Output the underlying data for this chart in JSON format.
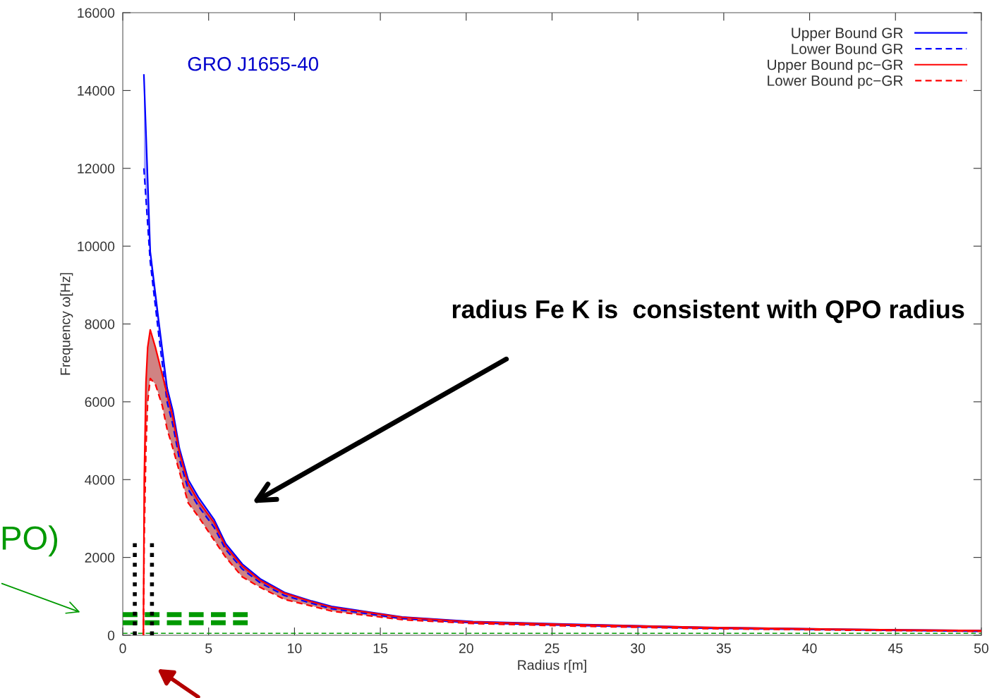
{
  "chart_data": {
    "type": "line",
    "xlabel": "Radius r[m]",
    "ylabel": "Frequency ω[Hz]",
    "xlim": [
      0,
      50
    ],
    "xticks": [
      0,
      5,
      10,
      15,
      20,
      25,
      30,
      35,
      40,
      45,
      50
    ],
    "ylim": [
      0,
      16000
    ],
    "yticks": [
      0,
      2000,
      4000,
      6000,
      8000,
      10000,
      12000,
      14000,
      16000
    ],
    "grid": false,
    "legend": "top right",
    "marker": "none",
    "series": [
      {
        "name": "Upper Bound GR",
        "color": "#0000ff",
        "line_style": "solid",
        "x": [
          1.23,
          1.6,
          2.1,
          2.58,
          2.92,
          3.3,
          3.81,
          4.4,
          5.31,
          6.0,
          6.96,
          8.0,
          9.42,
          11.0,
          12.16,
          16.27,
          20.4,
          25.7,
          33.9,
          42.2,
          50
        ],
        "values": [
          14400,
          9860,
          8050,
          6360,
          5760,
          4800,
          4000,
          3550,
          2980,
          2350,
          1830,
          1450,
          1100,
          880,
          740,
          470,
          350,
          290,
          200,
          150,
          120
        ],
        "lower": [
          12000,
          9600,
          7700,
          6000,
          5400,
          4520,
          3750,
          3320,
          2780,
          2200,
          1700,
          1350,
          1020,
          820,
          680,
          430,
          320,
          260,
          180,
          140,
          100
        ],
        "upper": [
          14400,
          9860,
          8050,
          6360,
          5760,
          4800,
          4000,
          3550,
          2980,
          2350,
          1830,
          1450,
          1100,
          880,
          740,
          470,
          350,
          290,
          200,
          150,
          120
        ]
      },
      {
        "name": "Lower Bound GR",
        "color": "#0000ff",
        "line_style": "dashed",
        "x": [
          1.23,
          1.6,
          2.1,
          2.58,
          2.92,
          3.3,
          3.81,
          4.4,
          5.31,
          6.0,
          6.96,
          8.0,
          9.42,
          11.0,
          12.16,
          16.27,
          20.4,
          25.7,
          33.9,
          42.2,
          50
        ],
        "values": [
          12000,
          9600,
          7700,
          6000,
          5400,
          4520,
          3750,
          3320,
          2780,
          2200,
          1700,
          1350,
          1020,
          820,
          680,
          430,
          320,
          260,
          180,
          140,
          100
        ]
      },
      {
        "name": "Upper Bound pc−GR",
        "color": "#ff0000",
        "line_style": "solid",
        "x": [
          1.2,
          1.25,
          1.35,
          1.45,
          1.6,
          1.9,
          2.3,
          2.58,
          2.92,
          3.3,
          3.81,
          4.4,
          5.31,
          6.0,
          6.96,
          8.0,
          9.42,
          11.0,
          12.16,
          16.27,
          20.4,
          25.7,
          33.9,
          42.2,
          50
        ],
        "values": [
          0,
          4000,
          6500,
          7400,
          7850,
          7400,
          6700,
          6200,
          5600,
          4700,
          3900,
          3450,
          2900,
          2280,
          1780,
          1410,
          1080,
          860,
          720,
          460,
          340,
          280,
          200,
          150,
          120
        ],
        "lower": [
          0,
          2500,
          4800,
          6000,
          6600,
          6450,
          5900,
          5300,
          4800,
          4200,
          3400,
          3050,
          2450,
          2000,
          1500,
          1230,
          920,
          750,
          620,
          400,
          300,
          240,
          170,
          130,
          100
        ],
        "upper": [
          0,
          4000,
          6500,
          7400,
          7850,
          7400,
          6700,
          6200,
          5600,
          4700,
          3900,
          3450,
          2900,
          2280,
          1780,
          1410,
          1080,
          860,
          720,
          460,
          340,
          280,
          200,
          150,
          120
        ]
      },
      {
        "name": "Lower Bound pc−GR",
        "color": "#ff0000",
        "line_style": "dashed",
        "x": [
          1.2,
          1.25,
          1.35,
          1.45,
          1.6,
          1.9,
          2.3,
          2.58,
          2.92,
          3.3,
          3.81,
          4.4,
          5.31,
          6.0,
          6.96,
          8.0,
          9.42,
          11.0,
          12.16,
          16.27,
          20.4,
          25.7,
          33.9,
          42.2,
          50
        ],
        "values": [
          0,
          2500,
          4800,
          6000,
          6600,
          6450,
          5900,
          5300,
          4800,
          4200,
          3400,
          3050,
          2450,
          2000,
          1500,
          1230,
          920,
          750,
          620,
          400,
          300,
          240,
          170,
          130,
          100
        ]
      },
      {
        "color": "#009900",
        "line_style": "dashed",
        "x": [
          0,
          7.5
        ],
        "values": [
          530,
          530
        ]
      },
      {
        "color": "#009900",
        "line_style": "dashed",
        "x": [
          0,
          7.5
        ],
        "values": [
          320,
          320
        ]
      },
      {
        "color": "#000000",
        "line_style": "dotted",
        "x": [
          0.7,
          0.7
        ],
        "values": [
          0,
          2500
        ]
      },
      {
        "color": "#000000",
        "line_style": "dotted",
        "x": [
          1.7,
          1.7
        ],
        "values": [
          0,
          2500
        ]
      }
    ],
    "ref_lines": [
      {
        "axis": "y",
        "value": 50,
        "color": "#009900",
        "line_style": "dashed"
      }
    ],
    "annotations": [
      "GRO J1655-40",
      "radius Fe K is  consistent with QPO radius",
      "PO)"
    ]
  }
}
